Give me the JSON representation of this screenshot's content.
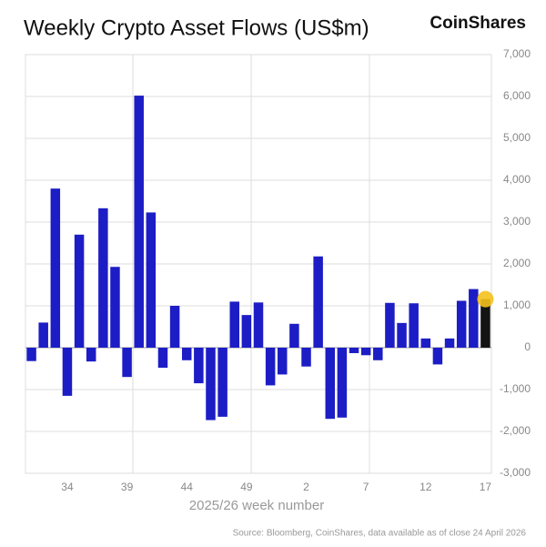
{
  "chart_data": {
    "type": "bar",
    "title": "Weekly Crypto Asset Flows (US$m)",
    "brand": "CoinShares",
    "x_label": "2025/26 week number",
    "source": "Source: Bloomberg, CoinShares, data available as of close 24 April 2026",
    "categories": [
      null,
      null,
      null,
      "34",
      null,
      null,
      null,
      null,
      "39",
      null,
      null,
      null,
      null,
      "44",
      null,
      null,
      null,
      null,
      "49",
      null,
      null,
      null,
      null,
      "2",
      null,
      null,
      null,
      null,
      "7",
      null,
      null,
      null,
      null,
      "12",
      null,
      null,
      null,
      null,
      "17"
    ],
    "values": [
      -320,
      600,
      3800,
      -1150,
      2700,
      -330,
      3330,
      1930,
      -700,
      6020,
      3230,
      -480,
      1000,
      -300,
      -850,
      -1730,
      -1650,
      1100,
      780,
      1080,
      -900,
      -640,
      570,
      -450,
      2180,
      -1700,
      -1670,
      -130,
      -180,
      -300,
      1070,
      590,
      1060,
      220,
      -400,
      220,
      1120,
      1400,
      1160
    ],
    "color": "#1d1dc6",
    "latest_color": "#141414",
    "latest_marker_color": "#f4c11c",
    "ylim": [
      -3000,
      7000
    ],
    "yticks": [
      {
        "value": -3000,
        "label": "-3,000"
      },
      {
        "value": -2000,
        "label": "-2,000"
      },
      {
        "value": -1000,
        "label": "-1,000"
      },
      0,
      {
        "value": 1000,
        "label": "1,000"
      },
      {
        "value": 2000,
        "label": "2,000"
      },
      {
        "value": 3000,
        "label": "3,000"
      },
      {
        "value": 4000,
        "label": "4,000"
      },
      {
        "value": 5000,
        "label": "5,000"
      },
      {
        "value": 6000,
        "label": "6,000"
      },
      {
        "value": 7000,
        "label": "7,000"
      }
    ],
    "grid": true
  }
}
